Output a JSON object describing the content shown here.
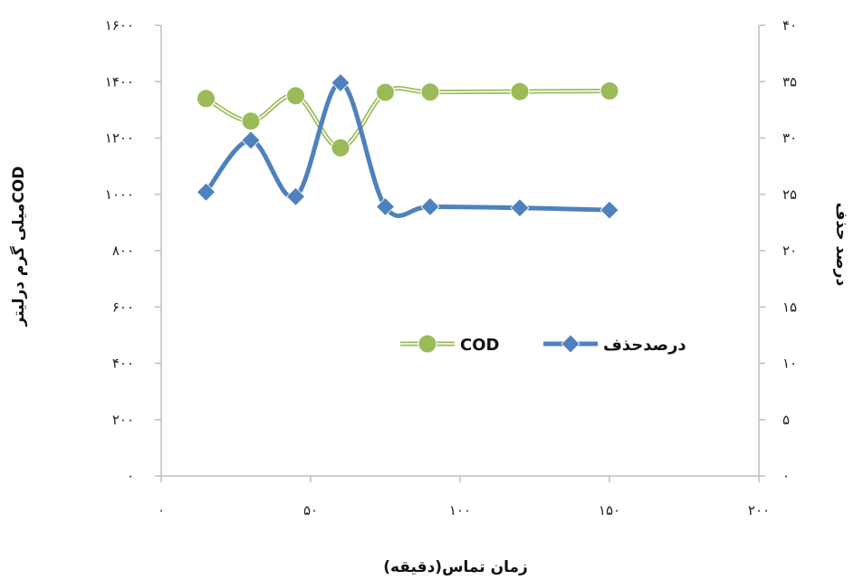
{
  "chart_data": {
    "type": "line",
    "xlabel": "زمان تماس(دقیقه)",
    "ylabel_left": "COD",
    "ylabel_left_suffix": "میلی گرم درلیتر",
    "ylabel_right": "درصد حذف",
    "xlim": [
      0,
      200
    ],
    "ylim_left": [
      0,
      1600
    ],
    "ylim_right": [
      0,
      40
    ],
    "x_tick_labels": [
      "۰",
      "۵۰",
      "۱۰۰",
      "۱۵۰",
      "۲۰۰"
    ],
    "y_left_tick_labels": [
      "۰",
      "۲۰۰",
      "۴۰۰",
      "۶۰۰",
      "۸۰۰",
      "۱۰۰۰",
      "۱۲۰۰",
      "۱۴۰۰",
      "۱۶۰۰"
    ],
    "y_right_tick_labels": [
      "۰",
      "۵",
      "۱۰",
      "۱۵",
      "۲۰",
      "۲۵",
      "۳۰",
      "۳۵",
      "۴۰"
    ],
    "grid": false,
    "legend_position": "center-right",
    "series": [
      {
        "name": "COD",
        "axis": "left",
        "color": "#9bbb59",
        "marker": "circle",
        "x": [
          15,
          30,
          45,
          60,
          75,
          90,
          120,
          150
        ],
        "y": [
          1340,
          1260,
          1350,
          1165,
          1362,
          1363,
          1365,
          1367
        ]
      },
      {
        "name": "درصدحذف",
        "axis": "right",
        "color": "#4f81bd",
        "marker": "diamond",
        "x": [
          15,
          30,
          45,
          60,
          75,
          90,
          120,
          150
        ],
        "y": [
          25.2,
          29.8,
          24.8,
          34.9,
          23.9,
          23.9,
          23.8,
          23.6
        ]
      }
    ]
  }
}
